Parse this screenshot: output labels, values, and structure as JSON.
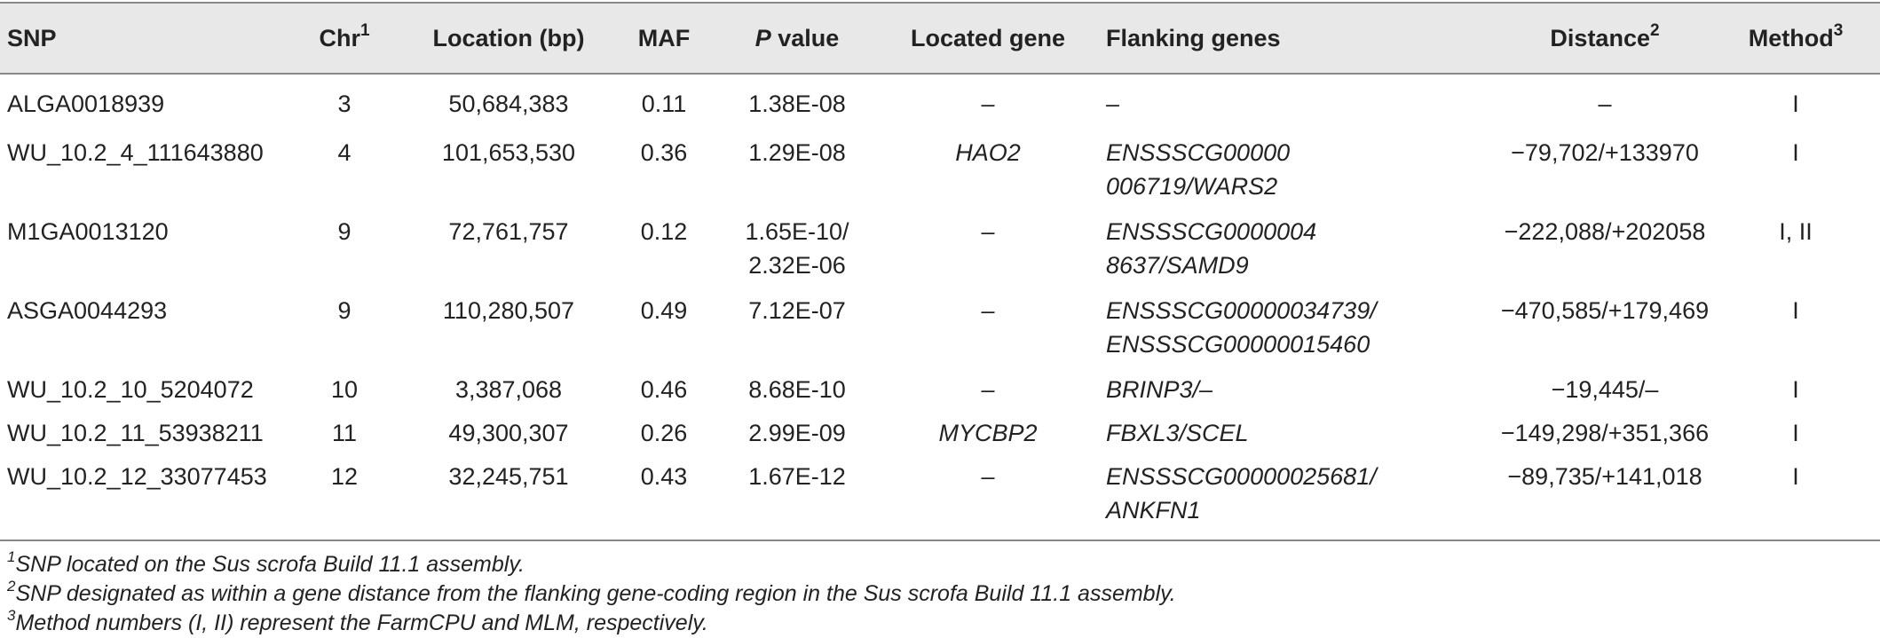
{
  "headers": {
    "snp": "SNP",
    "chr": "Chr",
    "chr_sup": "1",
    "location": "Location (bp)",
    "maf": "MAF",
    "p_italic": "P",
    "p_rest": " value",
    "located_gene": "Located gene",
    "flanking_genes": "Flanking genes",
    "distance": "Distance",
    "distance_sup": "2",
    "method": "Method",
    "method_sup": "3"
  },
  "rows": [
    {
      "snp": "ALGA0018939",
      "chr": "3",
      "location": "50,684,383",
      "maf": "0.11",
      "p1": "1.38E-08",
      "p2": "",
      "gene": "–",
      "flank1": "–",
      "flank2": "",
      "distance": "–",
      "method": "I"
    },
    {
      "snp": "WU_10.2_4_111643880",
      "chr": "4",
      "location": "101,653,530",
      "maf": "0.36",
      "p1": "1.29E-08",
      "p2": "",
      "gene": "HAO2",
      "flank1": "ENSSSCG00000",
      "flank2": "006719/WARS2",
      "distance": "−79,702/+133970",
      "method": "I"
    },
    {
      "snp": "M1GA0013120",
      "chr": "9",
      "location": "72,761,757",
      "maf": "0.12",
      "p1": "1.65E-10/",
      "p2": "2.32E-06",
      "gene": "–",
      "flank1": "ENSSSCG0000004",
      "flank2": "8637/SAMD9",
      "distance": "−222,088/+202058",
      "method": "I, II"
    },
    {
      "snp": "ASGA0044293",
      "chr": "9",
      "location": "110,280,507",
      "maf": "0.49",
      "p1": "7.12E-07",
      "p2": "",
      "gene": "–",
      "flank1": "ENSSSCG00000034739/",
      "flank2": "ENSSSCG00000015460",
      "distance": "−470,585/+179,469",
      "method": "I"
    },
    {
      "snp": "WU_10.2_10_5204072",
      "chr": "10",
      "location": "3,387,068",
      "maf": "0.46",
      "p1": "8.68E-10",
      "p2": "",
      "gene": "–",
      "flank1": "BRINP3/–",
      "flank2": "",
      "distance": "−19,445/–",
      "method": "I"
    },
    {
      "snp": "WU_10.2_11_53938211",
      "chr": "11",
      "location": "49,300,307",
      "maf": "0.26",
      "p1": "2.99E-09",
      "p2": "",
      "gene": "MYCBP2",
      "flank1": "FBXL3/SCEL",
      "flank2": "",
      "distance": "−149,298/+351,366",
      "method": "I"
    },
    {
      "snp": "WU_10.2_12_33077453",
      "chr": "12",
      "location": "32,245,751",
      "maf": "0.43",
      "p1": "1.67E-12",
      "p2": "",
      "gene": "–",
      "flank1": "ENSSSCG00000025681/",
      "flank2": "ANKFN1",
      "distance": "−89,735/+141,018",
      "method": "I"
    }
  ],
  "footnotes": [
    {
      "sup": "1",
      "text": "SNP located on the Sus scrofa Build 11.1 assembly."
    },
    {
      "sup": "2",
      "text": "SNP designated as within a gene distance from the flanking gene-coding region in the Sus scrofa Build 11.1 assembly."
    },
    {
      "sup": "3",
      "text": "Method numbers (I, II) represent the FarmCPU and MLM, respectively."
    }
  ]
}
